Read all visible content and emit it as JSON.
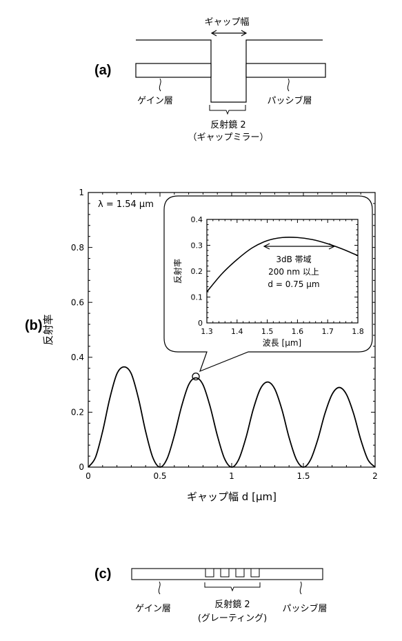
{
  "panel_a": {
    "label": "(a)",
    "gap_width_label": "ギャップ幅",
    "gain_layer": "ゲイン層",
    "passive_layer": "パッシブ層",
    "mirror_line1": "反射鏡 2",
    "mirror_line2": "（ギャップミラー）"
  },
  "panel_b": {
    "label": "(b)",
    "lambda_text": "λ = 1.54 μm"
  },
  "panel_c": {
    "label": "(c)",
    "gain_layer": "ゲイン層",
    "passive_layer": "パッシブ層",
    "mirror_line1": "反射鏡 2",
    "mirror_line2": "(グレーティング)"
  },
  "chart_data": [
    {
      "type": "line",
      "xlabel": "ギャップ幅 d [μm]",
      "ylabel": "反射率",
      "xlim": [
        0,
        2
      ],
      "ylim": [
        0,
        1
      ],
      "x_ticks": [
        "0",
        "0.5",
        "1",
        "1.5",
        "2"
      ],
      "y_ticks": [
        "0",
        "0.2",
        "0.4",
        "0.6",
        "0.8",
        "1"
      ],
      "series": [
        {
          "x": [
            0,
            0.05,
            0.1,
            0.15,
            0.2,
            0.25,
            0.3,
            0.35,
            0.4,
            0.45,
            0.5,
            0.55,
            0.6,
            0.65,
            0.7,
            0.75,
            0.8,
            0.85,
            0.9,
            0.95,
            1.0,
            1.05,
            1.1,
            1.15,
            1.2,
            1.25,
            1.3,
            1.35,
            1.4,
            1.45,
            1.5,
            1.55,
            1.6,
            1.65,
            1.7,
            1.75,
            1.8,
            1.85,
            1.9,
            1.95,
            2.0
          ],
          "values": [
            0,
            0.035,
            0.13,
            0.25,
            0.34,
            0.365,
            0.34,
            0.25,
            0.13,
            0.035,
            0,
            0.031,
            0.115,
            0.22,
            0.3,
            0.325,
            0.3,
            0.22,
            0.115,
            0.031,
            0,
            0.029,
            0.108,
            0.21,
            0.285,
            0.31,
            0.285,
            0.21,
            0.108,
            0.029,
            0,
            0.027,
            0.1,
            0.195,
            0.265,
            0.29,
            0.265,
            0.195,
            0.1,
            0.027,
            0
          ]
        }
      ],
      "highlight_point": {
        "x": 0.75,
        "y": 0.33
      }
    },
    {
      "type": "line",
      "xlabel": "波長 [μm]",
      "ylabel": "反射率",
      "xlim": [
        1.3,
        1.8
      ],
      "ylim": [
        0,
        0.4
      ],
      "x_ticks": [
        "1.3",
        "1.4",
        "1.5",
        "1.6",
        "1.7",
        "1.8"
      ],
      "y_ticks": [
        "0",
        "0.1",
        "0.2",
        "0.3",
        "0.4"
      ],
      "annotation": [
        "3dB 帯域",
        "200 nm 以上",
        "d = 0.75 μm"
      ],
      "series": [
        {
          "x": [
            1.3,
            1.35,
            1.4,
            1.45,
            1.5,
            1.55,
            1.6,
            1.65,
            1.7,
            1.75,
            1.8
          ],
          "values": [
            0.12,
            0.19,
            0.245,
            0.29,
            0.318,
            0.33,
            0.33,
            0.322,
            0.306,
            0.285,
            0.26
          ]
        }
      ]
    }
  ]
}
